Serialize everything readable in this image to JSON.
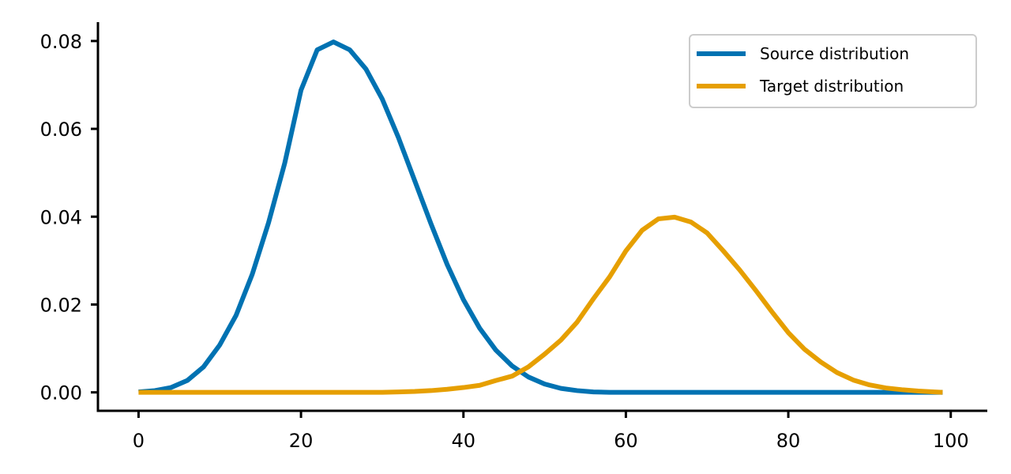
{
  "chart_data": {
    "type": "line",
    "title": "",
    "xlabel": "",
    "ylabel": "",
    "xlim": [
      -5,
      104.5
    ],
    "ylim": [
      -0.0042,
      0.0843
    ],
    "grid": false,
    "legend_position": "top-right",
    "x_ticks": [
      {
        "value": 0,
        "label": "0"
      },
      {
        "value": 20,
        "label": "20"
      },
      {
        "value": 40,
        "label": "40"
      },
      {
        "value": 60,
        "label": "60"
      },
      {
        "value": 80,
        "label": "80"
      },
      {
        "value": 100,
        "label": "100"
      }
    ],
    "y_ticks": [
      {
        "value": 0,
        "label": "0.00"
      },
      {
        "value": 0.02,
        "label": "0.02"
      },
      {
        "value": 0.04,
        "label": "0.04"
      },
      {
        "value": 0.06,
        "label": "0.06"
      },
      {
        "value": 0.08,
        "label": "0.08"
      }
    ],
    "x": [
      0,
      2,
      4,
      6,
      8,
      10,
      12,
      14,
      16,
      18,
      20,
      22,
      24,
      26,
      28,
      30,
      32,
      34,
      36,
      38,
      40,
      42,
      44,
      46,
      48,
      50,
      52,
      54,
      56,
      58,
      60,
      62,
      64,
      66,
      68,
      70,
      72,
      74,
      76,
      78,
      80,
      82,
      84,
      86,
      88,
      90,
      92,
      94,
      96,
      98,
      99
    ],
    "series": [
      {
        "name": "Source distribution",
        "color": "#0072b2",
        "values": [
          0.0001,
          0.0004,
          0.0011,
          0.0027,
          0.0058,
          0.0108,
          0.0175,
          0.0269,
          0.0386,
          0.0522,
          0.0688,
          0.078,
          0.0798,
          0.078,
          0.0736,
          0.0668,
          0.058,
          0.0482,
          0.0384,
          0.0291,
          0.0211,
          0.0146,
          0.0096,
          0.006,
          0.0035,
          0.0019,
          0.0009,
          0.0004,
          0.0001,
          0.0,
          0.0,
          0.0,
          0.0,
          0.0,
          0.0,
          0.0,
          0.0,
          0.0,
          0.0,
          0.0,
          0.0,
          0.0,
          0.0,
          0.0,
          0.0,
          0.0,
          0.0,
          0.0,
          0.0,
          0.0,
          0.0
        ]
      },
      {
        "name": "Target distribution",
        "color": "#e69f00",
        "values": [
          0.0,
          0.0,
          0.0,
          0.0,
          0.0,
          0.0,
          0.0,
          0.0,
          0.0,
          0.0,
          0.0,
          0.0,
          0.0,
          0.0,
          0.0,
          0.0,
          0.0001,
          0.0002,
          0.0004,
          0.0007,
          0.0011,
          0.0016,
          0.0027,
          0.0037,
          0.0058,
          0.0087,
          0.0119,
          0.016,
          0.0213,
          0.0263,
          0.0322,
          0.0369,
          0.0395,
          0.0399,
          0.0388,
          0.0363,
          0.0322,
          0.0279,
          0.0232,
          0.0183,
          0.0136,
          0.0098,
          0.0069,
          0.0045,
          0.0028,
          0.0017,
          0.001,
          0.0006,
          0.0003,
          0.0001,
          0.0
        ]
      }
    ]
  }
}
